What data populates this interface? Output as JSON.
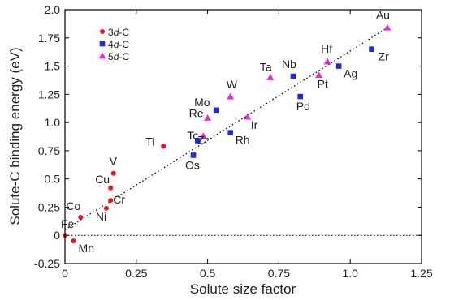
{
  "chart_data": {
    "type": "scatter",
    "xlabel": "Solute size factor",
    "ylabel": "Solute-C binding energy (eV)",
    "xlim": [
      0,
      1.25
    ],
    "ylim": [
      -0.25,
      2.0
    ],
    "xticks": [
      "0",
      "0.25",
      "0.5",
      "0.75",
      "1.0",
      "1.25"
    ],
    "yticks": [
      "-0.25",
      "0",
      "0.25",
      "0.5",
      "0.75",
      "1.0",
      "1.25",
      "1.5",
      "1.75",
      "2.0"
    ],
    "legend_position": "top-left",
    "series": [
      {
        "name": "3d-C",
        "marker": "circle",
        "color": "#e8141a",
        "points": [
          {
            "label": "Fe",
            "x": 0.0,
            "y": 0.0
          },
          {
            "label": "Mn",
            "x": 0.03,
            "y": -0.05
          },
          {
            "label": "Co",
            "x": 0.055,
            "y": 0.16
          },
          {
            "label": "Ni",
            "x": 0.145,
            "y": 0.24
          },
          {
            "label": "Cr",
            "x": 0.16,
            "y": 0.31
          },
          {
            "label": "Cu",
            "x": 0.16,
            "y": 0.42
          },
          {
            "label": "V",
            "x": 0.17,
            "y": 0.55
          },
          {
            "label": "Ti",
            "x": 0.345,
            "y": 0.79
          }
        ]
      },
      {
        "name": "4d-C",
        "marker": "square",
        "color": "#1c2bd6",
        "points": [
          {
            "label": "Os",
            "x": 0.45,
            "y": 0.71
          },
          {
            "label": "Zr",
            "x": 0.465,
            "y": 0.84
          },
          {
            "label": "Rh",
            "x": 0.58,
            "y": 0.91
          },
          {
            "label": "Mo",
            "x": 0.53,
            "y": 1.11
          },
          {
            "label": "Pd",
            "x": 0.825,
            "y": 1.23
          },
          {
            "label": "Nb",
            "x": 0.8,
            "y": 1.41
          },
          {
            "label": "Ag",
            "x": 0.96,
            "y": 1.5
          },
          {
            "label": "Zr",
            "x": 1.075,
            "y": 1.65
          }
        ]
      },
      {
        "name": "5d-C",
        "marker": "triangle",
        "color": "#e62ad6",
        "points": [
          {
            "label": "Tc",
            "x": 0.485,
            "y": 0.88
          },
          {
            "label": "Re",
            "x": 0.5,
            "y": 1.04
          },
          {
            "label": "W",
            "x": 0.58,
            "y": 1.23
          },
          {
            "label": "Ir",
            "x": 0.64,
            "y": 1.05
          },
          {
            "label": "Ta",
            "x": 0.72,
            "y": 1.4
          },
          {
            "label": "Pt",
            "x": 0.89,
            "y": 1.42
          },
          {
            "label": "Hf",
            "x": 0.92,
            "y": 1.54
          },
          {
            "label": "Au",
            "x": 1.13,
            "y": 1.84
          }
        ]
      }
    ],
    "trend_line": {
      "style": "dotted",
      "x": [
        0.0,
        1.13
      ],
      "y": [
        0.05,
        1.84
      ]
    },
    "reference_line": {
      "style": "dotted",
      "y": 0
    }
  }
}
